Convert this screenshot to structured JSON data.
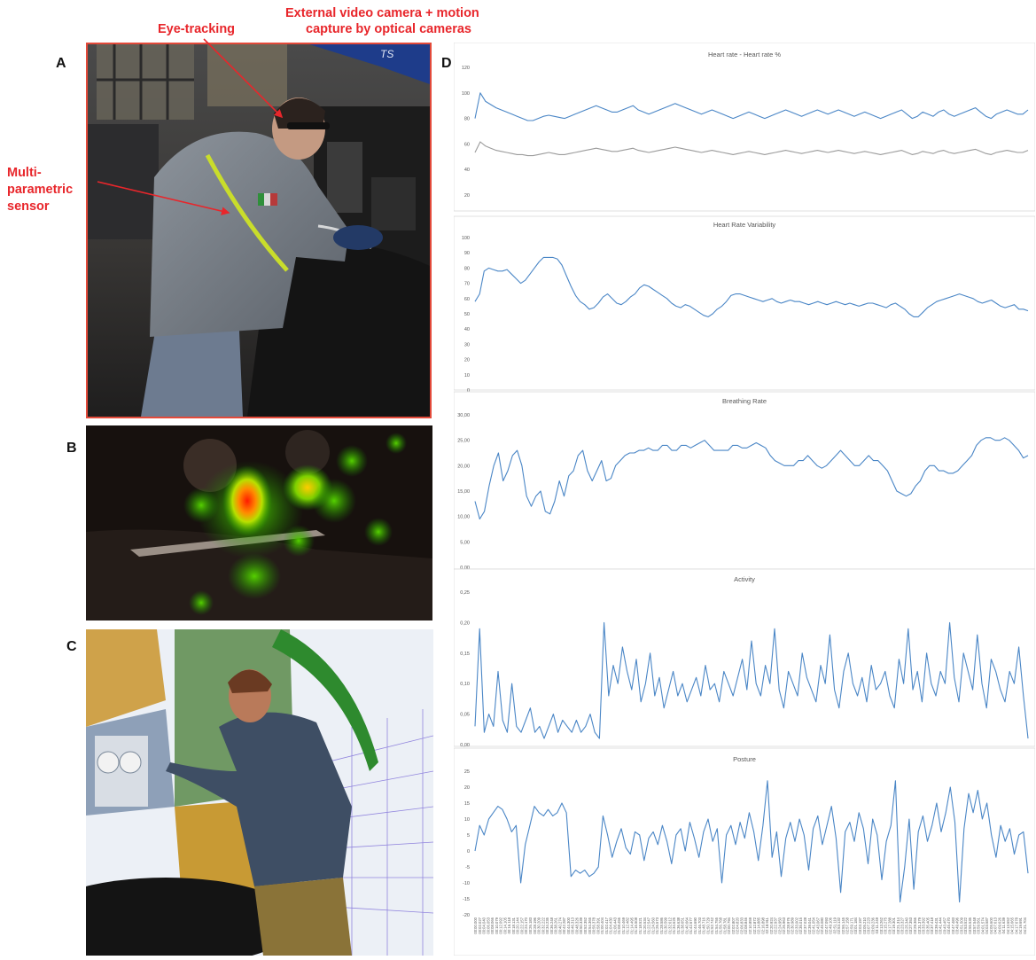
{
  "labels": {
    "panel_a": "A",
    "panel_b": "B",
    "panel_c": "C",
    "panel_d": "D",
    "eye_tracking": "Eye-tracking",
    "external_camera_line1": "External video camera + motion",
    "external_camera_line2": "capture by optical cameras",
    "sensor_line1": "Multi-",
    "sensor_line2": "parametric",
    "sensor_line3": "sensor"
  },
  "colors": {
    "primary_series": "#4a86c6",
    "secondary_series": "#9b9b9b",
    "annotation": "#e8262b",
    "frame": "#e34a3a"
  },
  "chart_data": [
    {
      "type": "line",
      "title": "Heart rate - Heart rate %",
      "yticks": [
        "120",
        "100",
        "80",
        "60",
        "40",
        "20"
      ],
      "ylim": [
        0,
        120
      ],
      "grid": false,
      "series": [
        {
          "values": [
            72,
            96,
            88,
            85,
            82,
            80,
            78,
            76,
            74,
            72,
            70,
            70,
            72,
            74,
            75,
            74,
            73,
            72,
            74,
            76,
            78,
            80,
            82,
            84,
            82,
            80,
            78,
            78,
            80,
            82,
            84,
            80,
            78,
            76,
            78,
            80,
            82,
            84,
            86,
            84,
            82,
            80,
            78,
            76,
            78,
            80,
            78,
            76,
            74,
            72,
            74,
            76,
            78,
            76,
            74,
            72,
            74,
            76,
            78,
            80,
            78,
            76,
            74,
            76,
            78,
            80,
            78,
            76,
            78,
            80,
            78,
            76,
            74,
            76,
            78,
            76,
            74,
            72,
            74,
            76,
            78,
            80,
            76,
            72,
            74,
            78,
            76,
            74,
            78,
            80,
            76,
            74,
            76,
            78,
            80,
            82,
            78,
            74,
            72,
            76,
            78,
            80,
            78,
            76,
            76,
            80
          ]
        },
        {
          "values": [
            40,
            50,
            46,
            44,
            42,
            41,
            40,
            39,
            38,
            38,
            37,
            37,
            38,
            39,
            40,
            39,
            38,
            38,
            39,
            40,
            41,
            42,
            43,
            44,
            43,
            42,
            41,
            41,
            42,
            43,
            44,
            42,
            41,
            40,
            41,
            42,
            43,
            44,
            45,
            44,
            43,
            42,
            41,
            40,
            41,
            42,
            41,
            40,
            39,
            38,
            39,
            40,
            41,
            40,
            39,
            38,
            39,
            40,
            41,
            42,
            41,
            40,
            39,
            40,
            41,
            42,
            41,
            40,
            41,
            42,
            41,
            40,
            39,
            40,
            41,
            40,
            39,
            38,
            39,
            40,
            41,
            42,
            40,
            38,
            39,
            41,
            40,
            39,
            41,
            42,
            40,
            39,
            40,
            41,
            42,
            43,
            41,
            39,
            38,
            40,
            41,
            42,
            41,
            40,
            40,
            42
          ]
        }
      ]
    },
    {
      "type": "line",
      "title": "Heart Rate Variability",
      "yticks": [
        "100",
        "90",
        "80",
        "70",
        "60",
        "50",
        "40",
        "30",
        "20",
        "10",
        "0"
      ],
      "ylim": [
        0,
        100
      ],
      "grid": false,
      "series": [
        {
          "values": [
            58,
            63,
            78,
            80,
            79,
            78,
            78,
            79,
            76,
            73,
            70,
            72,
            76,
            80,
            84,
            87,
            87,
            87,
            86,
            82,
            75,
            68,
            62,
            58,
            56,
            53,
            54,
            57,
            61,
            63,
            60,
            57,
            56,
            58,
            61,
            63,
            67,
            69,
            68,
            66,
            64,
            62,
            60,
            57,
            55,
            54,
            56,
            55,
            53,
            51,
            49,
            48,
            50,
            53,
            55,
            58,
            62,
            63,
            63,
            62,
            61,
            60,
            59,
            58,
            59,
            60,
            58,
            57,
            58,
            59,
            58,
            58,
            57,
            56,
            57,
            58,
            57,
            56,
            57,
            58,
            57,
            56,
            57,
            56,
            55,
            56,
            57,
            57,
            56,
            55,
            54,
            56,
            57,
            55,
            53,
            50,
            48,
            48,
            51,
            54,
            56,
            58,
            59,
            60,
            61,
            62,
            63,
            62,
            61,
            60,
            58,
            57,
            58,
            59,
            57,
            55,
            54,
            55,
            56,
            53,
            53,
            52
          ]
        }
      ]
    },
    {
      "type": "line",
      "title": "Breathing Rate",
      "yticks": [
        "30,00",
        "25,00",
        "20,00",
        "15,00",
        "10,00",
        "5,00",
        "0,00"
      ],
      "ylim": [
        0,
        30
      ],
      "grid": false,
      "series": [
        {
          "values": [
            13,
            9.5,
            11,
            16,
            20,
            22.5,
            17,
            19,
            22,
            23,
            20,
            14,
            12,
            14,
            15,
            11,
            10.5,
            13,
            17,
            14,
            18,
            19,
            22,
            23,
            19,
            17,
            19,
            21,
            17,
            17.5,
            20,
            21,
            22,
            22.5,
            22.5,
            23,
            23,
            23.5,
            23,
            23,
            24,
            24,
            23,
            23,
            24,
            24,
            23.5,
            24,
            24.5,
            25,
            24,
            23,
            23,
            23,
            23,
            24,
            24,
            23.5,
            23.5,
            24,
            24.5,
            24,
            23.5,
            22,
            21,
            20.5,
            20,
            20,
            20,
            21,
            21,
            22,
            21,
            20,
            19.5,
            20,
            21,
            22,
            23,
            22,
            21,
            20,
            20,
            21,
            22,
            21,
            21,
            20,
            19,
            17,
            15,
            14.5,
            14,
            14.5,
            16,
            17,
            19,
            20,
            20,
            19,
            19,
            18.5,
            18.5,
            19,
            20,
            21,
            22,
            24,
            25,
            25.5,
            25.5,
            25,
            25,
            25.5,
            25,
            24,
            23,
            21.5,
            22
          ]
        }
      ]
    },
    {
      "type": "line",
      "title": "Activity",
      "yticks": [
        "0,25",
        "0,20",
        "0,15",
        "0,10",
        "0,05",
        "0,00"
      ],
      "ylim": [
        0,
        0.25
      ],
      "grid": false,
      "series": [
        {
          "values": [
            0.03,
            0.19,
            0.02,
            0.05,
            0.03,
            0.12,
            0.04,
            0.02,
            0.1,
            0.03,
            0.02,
            0.04,
            0.06,
            0.02,
            0.03,
            0.01,
            0.03,
            0.05,
            0.02,
            0.04,
            0.03,
            0.02,
            0.04,
            0.02,
            0.03,
            0.05,
            0.02,
            0.01,
            0.2,
            0.08,
            0.13,
            0.1,
            0.16,
            0.12,
            0.09,
            0.14,
            0.07,
            0.1,
            0.15,
            0.08,
            0.11,
            0.06,
            0.09,
            0.12,
            0.08,
            0.1,
            0.07,
            0.09,
            0.11,
            0.08,
            0.13,
            0.09,
            0.1,
            0.07,
            0.12,
            0.1,
            0.08,
            0.11,
            0.14,
            0.09,
            0.17,
            0.1,
            0.08,
            0.13,
            0.1,
            0.19,
            0.09,
            0.06,
            0.12,
            0.1,
            0.08,
            0.15,
            0.11,
            0.09,
            0.07,
            0.13,
            0.1,
            0.18,
            0.09,
            0.06,
            0.12,
            0.15,
            0.1,
            0.08,
            0.11,
            0.07,
            0.13,
            0.09,
            0.1,
            0.12,
            0.08,
            0.06,
            0.14,
            0.1,
            0.19,
            0.09,
            0.12,
            0.07,
            0.15,
            0.1,
            0.08,
            0.12,
            0.1,
            0.2,
            0.11,
            0.07,
            0.15,
            0.12,
            0.09,
            0.18,
            0.1,
            0.06,
            0.14,
            0.12,
            0.09,
            0.07,
            0.12,
            0.1,
            0.16,
            0.08,
            0.01
          ]
        }
      ]
    },
    {
      "type": "line",
      "title": "Posture",
      "yticks": [
        "25",
        "20",
        "15",
        "10",
        "5",
        "0",
        "-5",
        "-10",
        "-15",
        "-20"
      ],
      "ylim": [
        -20,
        25
      ],
      "grid": false,
      "series": [
        {
          "values": [
            0,
            8,
            5,
            10,
            12,
            14,
            13,
            10,
            6,
            8,
            -10,
            2,
            8,
            14,
            12,
            11,
            13,
            11,
            12,
            15,
            12,
            -8,
            -6,
            -7,
            -6,
            -8,
            -7,
            -5,
            11,
            5,
            -2,
            3,
            7,
            1,
            -1,
            6,
            5,
            -3,
            4,
            6,
            2,
            8,
            3,
            -4,
            5,
            7,
            0,
            9,
            4,
            -2,
            6,
            10,
            3,
            7,
            -10,
            5,
            8,
            2,
            9,
            4,
            12,
            6,
            -3,
            8,
            22,
            -2,
            6,
            -8,
            4,
            9,
            3,
            10,
            5,
            -6,
            7,
            11,
            2,
            8,
            14,
            4,
            -13,
            6,
            9,
            3,
            12,
            7,
            -4,
            10,
            5,
            -9,
            3,
            8,
            22,
            -16,
            -5,
            10,
            -12,
            6,
            11,
            3,
            8,
            15,
            6,
            12,
            20,
            9,
            -16,
            7,
            18,
            12,
            19,
            10,
            15,
            5,
            -2,
            8,
            3,
            7,
            -1,
            5,
            6,
            -7
          ]
        }
      ]
    }
  ],
  "x_axis_ticks": [
    "00:00.000",
    "00:02.027",
    "00:04.040",
    "00:06.053",
    "00:08.066",
    "00:10.079",
    "00:12.092",
    "00:14.105",
    "00:16.118",
    "00:18.131",
    "00:20.144",
    "00:22.157",
    "00:24.170",
    "00:26.183",
    "00:28.196",
    "00:30.209",
    "00:32.222",
    "00:34.235",
    "00:36.248",
    "00:38.261",
    "00:40.274",
    "00:42.287",
    "00:44.300",
    "00:46.313",
    "00:48.326",
    "00:50.339",
    "00:52.352",
    "00:54.365",
    "00:56.378",
    "00:58.391",
    "01:00.404",
    "01:02.417",
    "01:04.430",
    "01:06.443",
    "01:08.456",
    "01:10.469",
    "01:12.482",
    "01:14.495",
    "01:16.508",
    "01:18.521",
    "01:20.534",
    "01:22.547",
    "01:24.560",
    "01:26.573",
    "01:28.586",
    "01:30.599",
    "01:32.612",
    "01:34.625",
    "01:36.638",
    "01:38.651",
    "01:40.664",
    "01:42.677",
    "01:44.690",
    "01:46.703",
    "01:48.716",
    "01:50.729",
    "01:52.742",
    "01:54.755",
    "01:56.768",
    "01:58.781",
    "02:00.794",
    "02:02.807",
    "02:04.820",
    "02:06.833",
    "02:08.846",
    "02:10.859",
    "02:12.872",
    "02:14.885",
    "02:16.898",
    "02:18.911",
    "02:20.924",
    "02:22.937",
    "02:24.950",
    "02:26.963",
    "02:28.976",
    "02:30.989",
    "02:33.002",
    "02:35.015",
    "02:37.028",
    "02:39.041",
    "02:41.054",
    "02:43.067",
    "02:45.080",
    "02:47.093",
    "02:49.106",
    "02:51.119",
    "02:53.132",
    "02:55.145",
    "02:57.158",
    "02:59.171",
    "03:01.184",
    "03:03.197",
    "03:05.210",
    "03:07.223",
    "03:09.236",
    "03:11.249",
    "03:13.262",
    "03:15.275",
    "03:17.288",
    "03:19.301",
    "03:21.314",
    "03:23.327",
    "03:25.340",
    "03:27.353",
    "03:29.366",
    "03:31.379",
    "03:33.392",
    "03:35.405",
    "03:37.418",
    "03:39.431",
    "03:41.444",
    "03:43.457",
    "03:45.470",
    "03:47.483",
    "03:49.496",
    "03:51.509",
    "03:53.522",
    "03:55.535",
    "03:57.548",
    "03:59.561",
    "04:01.574",
    "04:03.587",
    "04:05.600",
    "04:07.613",
    "04:09.626",
    "04:11.639",
    "04:13.652",
    "04:15.665",
    "04:17.678",
    "04:19.691",
    "04:21.704"
  ]
}
